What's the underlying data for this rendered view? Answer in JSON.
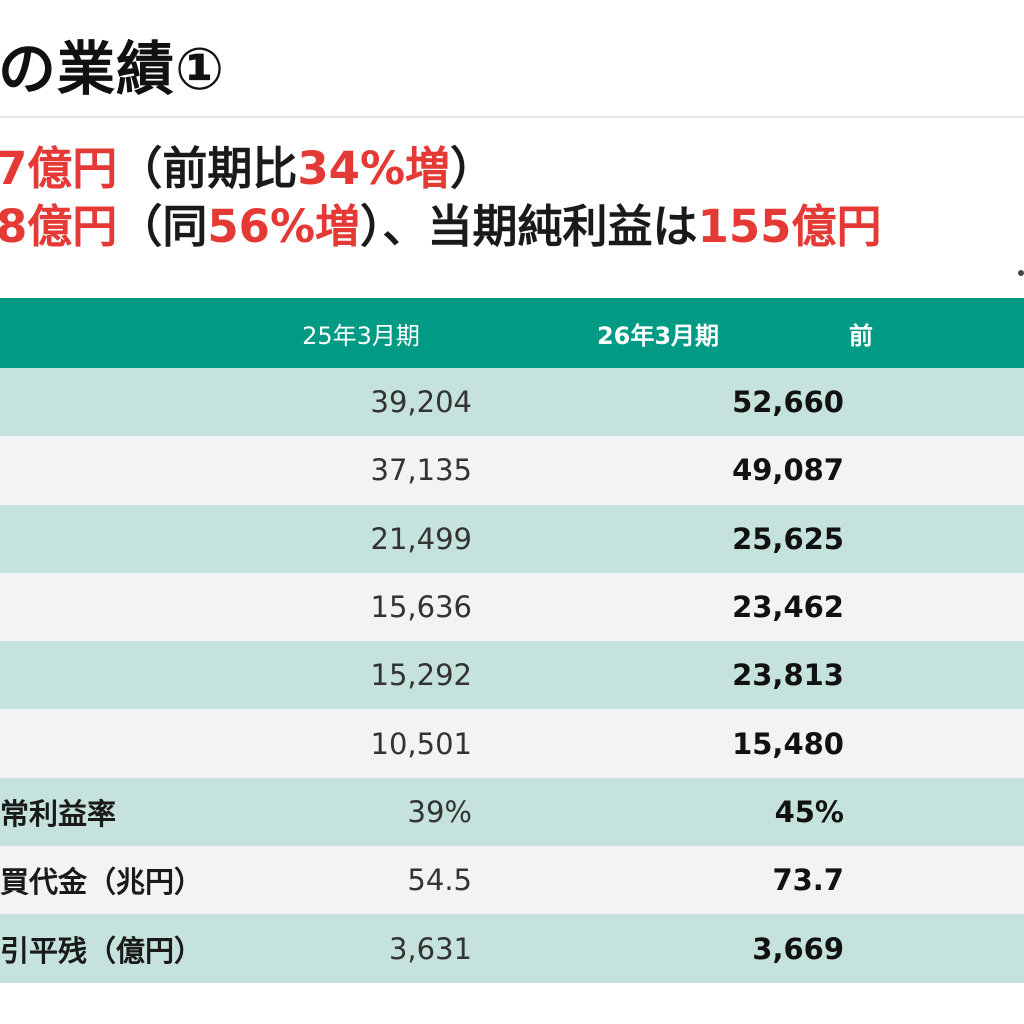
{
  "title": "の業績①",
  "headline": {
    "line1": [
      {
        "text": "7億円",
        "red": true
      },
      {
        "text": "（前期比",
        "red": false
      },
      {
        "text": "34%増",
        "red": true
      },
      {
        "text": "）",
        "red": false
      }
    ],
    "line2": [
      {
        "text": "8億円",
        "red": true
      },
      {
        "text": "（同",
        "red": false
      },
      {
        "text": "56%増",
        "red": true
      },
      {
        "text": "）、当期純利益は",
        "red": false
      },
      {
        "text": "155億円",
        "red": true
      }
    ]
  },
  "table": {
    "columns": [
      "",
      "25年3月期",
      "26年3月期",
      "前"
    ],
    "rows": [
      {
        "label": "",
        "prev": "39,204",
        "cur": "52,660",
        "change": ""
      },
      {
        "label": "",
        "prev": "37,135",
        "cur": "49,087",
        "change": ""
      },
      {
        "label": "",
        "prev": "21,499",
        "cur": "25,625",
        "change": ""
      },
      {
        "label": "",
        "prev": "15,636",
        "cur": "23,462",
        "change": ""
      },
      {
        "label": "",
        "prev": "15,292",
        "cur": "23,813",
        "change": ""
      },
      {
        "label": "",
        "prev": "10,501",
        "cur": "15,480",
        "change": ""
      },
      {
        "label": "常利益率",
        "prev": "39%",
        "cur": "45%",
        "change": ""
      },
      {
        "label": "買代金（兆円）",
        "prev": "54.5",
        "cur": "73.7",
        "change": ""
      },
      {
        "label": "引平残（億円）",
        "prev": "3,631",
        "cur": "3,669",
        "change": ""
      }
    ]
  },
  "colors": {
    "accent_green": "#009a85",
    "row_band": "#c5e3dc",
    "row_alt": "#f3f3f3",
    "highlight_red": "#e53935"
  }
}
